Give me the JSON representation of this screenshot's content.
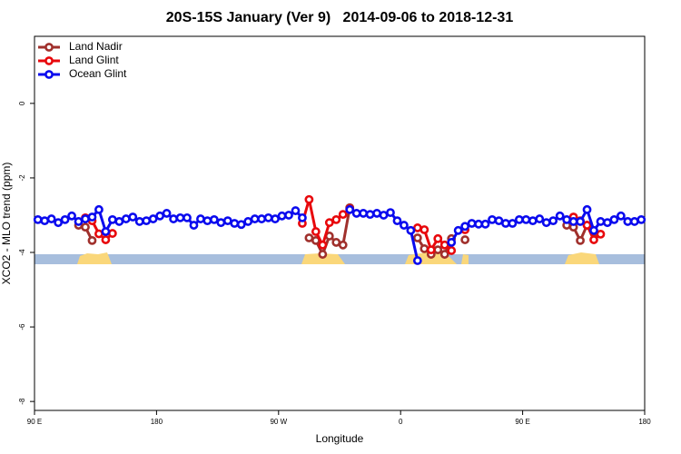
{
  "chart_data": {
    "type": "line",
    "title": "20S-15S January (Ver 9)   2014-09-06 to 2018-12-31",
    "xlabel": "Longitude",
    "ylabel": "XCO2 - MLO trend (ppm)",
    "xlim": [
      90,
      540
    ],
    "ylim": [
      -8.24,
      1.8
    ],
    "xticks": [
      {
        "value": 90,
        "label": "90 E"
      },
      180,
      {
        "value": 270,
        "label": "90 W"
      },
      {
        "value": 360,
        "label": "0"
      },
      {
        "value": 450,
        "label": "90 E"
      },
      {
        "value": 540,
        "label": "180"
      }
    ],
    "yticks": [
      0,
      -2,
      -4,
      -6,
      -8
    ],
    "legend": "top-left",
    "x": [
      92.5,
      97.5,
      102.5,
      107.5,
      112.5,
      117.5,
      122.5,
      127.5,
      132.5,
      137.5,
      142.5,
      147.5,
      152.5,
      157.5,
      162.5,
      167.5,
      172.5,
      177.5,
      182.5,
      187.5,
      192.5,
      197.5,
      202.5,
      207.5,
      212.5,
      217.5,
      222.5,
      227.5,
      232.5,
      237.5,
      242.5,
      247.5,
      252.5,
      257.5,
      262.5,
      267.5,
      272.5,
      277.5,
      282.5,
      287.5,
      292.5,
      297.5,
      302.5,
      307.5,
      312.5,
      317.5,
      322.5,
      327.5,
      332.5,
      337.5,
      342.5,
      347.5,
      352.5,
      357.5,
      362.5,
      367.5,
      372.5,
      377.5,
      382.5,
      387.5,
      392.5,
      397.5,
      402.5,
      407.5,
      412.5,
      417.5,
      422.5,
      427.5,
      432.5,
      437.5,
      442.5,
      447.5,
      452.5,
      457.5,
      462.5,
      467.5,
      472.5,
      477.5,
      482.5,
      487.5,
      492.5,
      497.5,
      502.5,
      507.5,
      512.5,
      517.5,
      522.5,
      527.5,
      532.5,
      537.5
    ],
    "series": [
      {
        "name": "Land Nadir",
        "color": "#a0302c",
        "values": [
          null,
          null,
          null,
          null,
          null,
          null,
          -3.27,
          -3.32,
          -3.68,
          null,
          null,
          null,
          null,
          null,
          null,
          null,
          null,
          null,
          null,
          null,
          null,
          null,
          null,
          null,
          null,
          null,
          null,
          null,
          null,
          null,
          null,
          null,
          null,
          null,
          null,
          null,
          null,
          null,
          null,
          null,
          -3.61,
          -3.68,
          -4.05,
          -3.56,
          -3.73,
          -3.8,
          -2.8,
          null,
          null,
          null,
          null,
          null,
          null,
          null,
          null,
          null,
          -3.61,
          -3.9,
          -4.05,
          -3.93,
          -4.05,
          -3.63,
          null,
          -3.66,
          null,
          null,
          null,
          null,
          null,
          null,
          null,
          null,
          null,
          null,
          null,
          null,
          null,
          null,
          -3.27,
          -3.32,
          -3.68,
          -3.27,
          -3.46,
          null,
          null,
          null,
          null,
          null,
          null,
          null
        ]
      },
      {
        "name": "Land Glint",
        "color": "#e8080c",
        "values": [
          null,
          null,
          null,
          null,
          null,
          null,
          null,
          -3.07,
          -3.15,
          -3.5,
          -3.66,
          -3.49,
          null,
          null,
          null,
          null,
          null,
          null,
          null,
          null,
          null,
          null,
          null,
          null,
          null,
          null,
          null,
          null,
          null,
          null,
          null,
          null,
          null,
          null,
          null,
          null,
          null,
          null,
          null,
          -3.22,
          -2.58,
          -3.44,
          -3.8,
          -3.2,
          -3.12,
          -2.98,
          -2.83,
          null,
          null,
          null,
          null,
          null,
          null,
          null,
          null,
          null,
          -3.34,
          -3.39,
          -3.93,
          -3.63,
          -3.8,
          -3.95,
          null,
          -3.39,
          null,
          null,
          null,
          null,
          null,
          null,
          null,
          null,
          null,
          null,
          null,
          null,
          null,
          null,
          null,
          -3.05,
          -3.15,
          -3.27,
          -3.66,
          -3.51,
          null,
          null,
          null,
          null,
          null,
          null
        ]
      },
      {
        "name": "Ocean Glint",
        "color": "#0a0aee",
        "values": [
          -3.12,
          -3.15,
          -3.1,
          -3.2,
          -3.12,
          -3.02,
          -3.17,
          -3.1,
          -3.05,
          -2.85,
          -3.44,
          -3.12,
          -3.17,
          -3.1,
          -3.05,
          -3.17,
          -3.15,
          -3.1,
          -3.02,
          -2.95,
          -3.1,
          -3.07,
          -3.07,
          -3.27,
          -3.1,
          -3.15,
          -3.12,
          -3.2,
          -3.15,
          -3.22,
          -3.25,
          -3.17,
          -3.1,
          -3.1,
          -3.07,
          -3.1,
          -3.02,
          -3.0,
          -2.88,
          -3.07,
          null,
          null,
          null,
          null,
          null,
          null,
          -2.85,
          -2.95,
          -2.95,
          -2.98,
          -2.95,
          -3.0,
          -2.93,
          -3.15,
          -3.27,
          -3.41,
          -4.22,
          null,
          null,
          null,
          null,
          -3.73,
          -3.41,
          -3.3,
          -3.22,
          -3.24,
          -3.24,
          -3.12,
          -3.15,
          -3.22,
          -3.22,
          -3.12,
          -3.12,
          -3.15,
          -3.1,
          -3.2,
          -3.15,
          -3.02,
          -3.12,
          -3.17,
          -3.17,
          -2.85,
          -3.41,
          -3.17,
          -3.2,
          -3.12,
          -3.02,
          -3.17,
          -3.17,
          -3.12
        ]
      }
    ]
  }
}
